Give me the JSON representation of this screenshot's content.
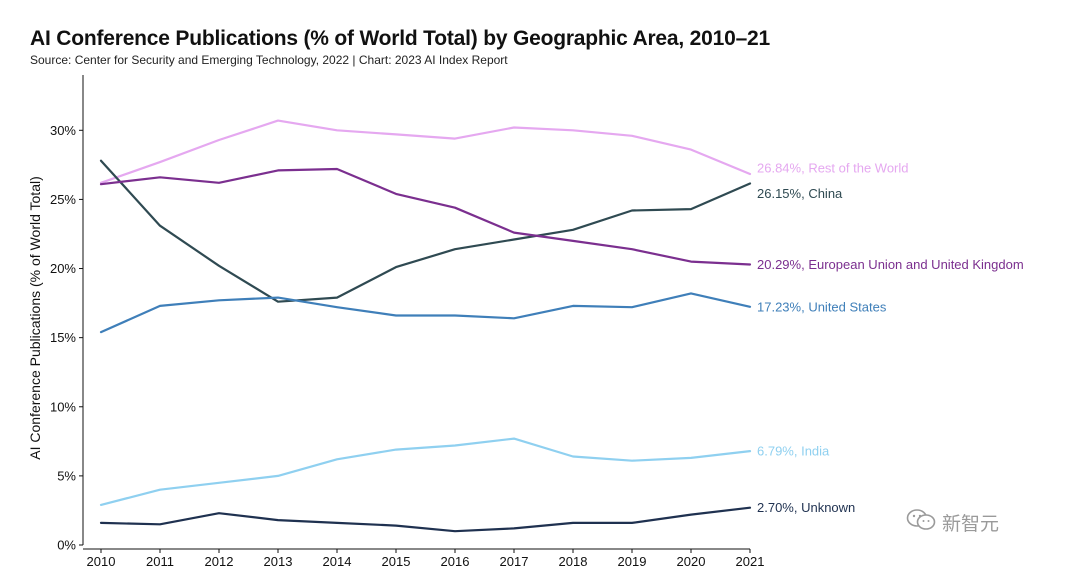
{
  "title": "AI Conference Publications (% of World Total) by Geographic Area, 2010–21",
  "source": "Source: Center for Security and Emerging Technology, 2022 | Chart: 2023 AI Index Report",
  "watermark": {
    "text": "新智元",
    "icon": "wechat-icon"
  },
  "chart_data": {
    "type": "line",
    "title": "AI Conference Publications (% of World Total) by Geographic Area, 2010–21",
    "xlabel": "",
    "ylabel": "AI Conference Publications (% of World Total)",
    "x": [
      2010,
      2011,
      2012,
      2013,
      2014,
      2015,
      2016,
      2017,
      2018,
      2019,
      2020,
      2021
    ],
    "x_tick_labels": [
      "2010",
      "2011",
      "2012",
      "2013",
      "2014",
      "2015",
      "2016",
      "2017",
      "2018",
      "2019",
      "2020",
      "2021"
    ],
    "ylim": [
      0,
      30
    ],
    "y_ticks": [
      0,
      5,
      10,
      15,
      20,
      25,
      30
    ],
    "y_tick_labels": [
      "0%",
      "5%",
      "10%",
      "15%",
      "20%",
      "25%",
      "30%"
    ],
    "grid": false,
    "legend": "end-of-line labels",
    "series": [
      {
        "name": "Rest of the World",
        "label": "26.84%, Rest of the World",
        "color": "#e5a8f0",
        "values": [
          26.2,
          27.7,
          29.3,
          30.7,
          30.0,
          29.7,
          29.4,
          30.2,
          30.0,
          29.6,
          28.6,
          26.84
        ]
      },
      {
        "name": "China",
        "label": "26.15%, China",
        "color": "#2f4a52",
        "values": [
          27.8,
          23.1,
          20.2,
          17.6,
          17.9,
          20.1,
          21.4,
          22.1,
          22.8,
          24.2,
          24.3,
          26.15
        ]
      },
      {
        "name": "European Union and United Kingdom",
        "label": "20.29%, European Union and United Kingdom",
        "color": "#7b2f8f",
        "values": [
          26.1,
          26.6,
          26.2,
          27.1,
          27.2,
          25.4,
          24.4,
          22.6,
          22.0,
          21.4,
          20.5,
          20.29
        ]
      },
      {
        "name": "United States",
        "label": "17.23%, United States",
        "color": "#3f7fb9",
        "values": [
          15.4,
          17.3,
          17.7,
          17.9,
          17.2,
          16.6,
          16.6,
          16.4,
          17.3,
          17.2,
          18.2,
          17.23
        ]
      },
      {
        "name": "India",
        "label": "6.79%, India",
        "color": "#8fd0f0",
        "values": [
          2.9,
          4.0,
          4.5,
          5.0,
          6.2,
          6.9,
          7.2,
          7.7,
          6.4,
          6.1,
          6.3,
          6.79
        ]
      },
      {
        "name": "Unknown",
        "label": "2.70%, Unknown",
        "color": "#1f3150",
        "values": [
          1.6,
          1.5,
          2.3,
          1.8,
          1.6,
          1.4,
          1.0,
          1.2,
          1.6,
          1.6,
          2.2,
          2.7
        ]
      }
    ]
  }
}
